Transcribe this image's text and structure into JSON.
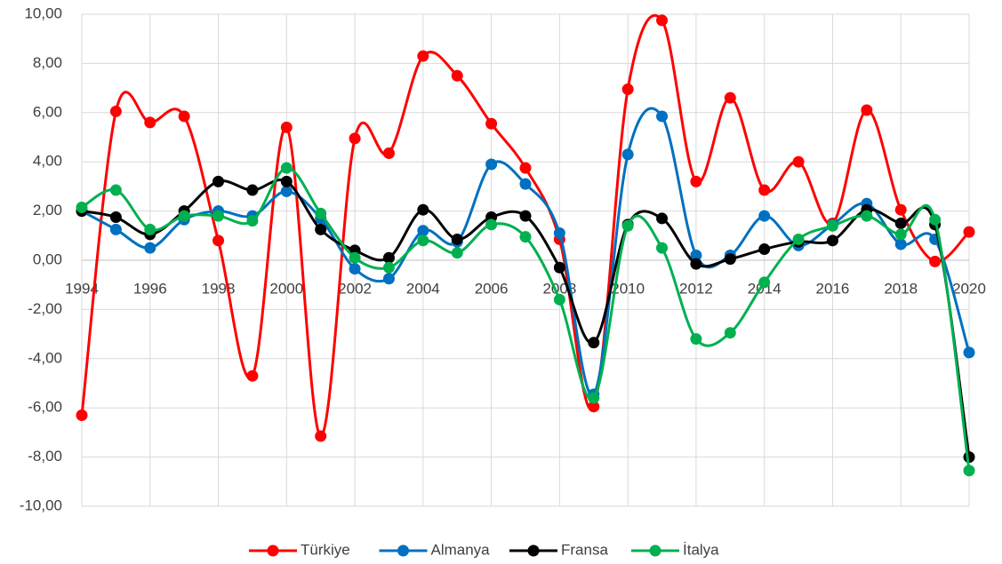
{
  "chart_data": {
    "type": "line",
    "smooth": true,
    "x": [
      1994,
      1995,
      1996,
      1997,
      1998,
      1999,
      2000,
      2001,
      2002,
      2003,
      2004,
      2005,
      2006,
      2007,
      2008,
      2009,
      2010,
      2011,
      2012,
      2013,
      2014,
      2015,
      2016,
      2017,
      2018,
      2019,
      2020
    ],
    "series": [
      {
        "name": "Türkiye",
        "color": "#ff0000",
        "values": [
          -6.3,
          6.05,
          5.6,
          5.85,
          0.8,
          -4.7,
          5.4,
          -7.15,
          4.95,
          4.35,
          8.3,
          7.5,
          5.55,
          3.75,
          0.85,
          -5.95,
          6.95,
          9.75,
          3.2,
          6.6,
          2.85,
          4.0,
          1.5,
          6.1,
          2.05,
          -0.05,
          1.15
        ]
      },
      {
        "name": "Almanya",
        "color": "#0070c0",
        "values": [
          2.0,
          1.25,
          0.5,
          1.65,
          2.0,
          1.8,
          2.8,
          1.7,
          -0.35,
          -0.75,
          1.2,
          0.75,
          3.9,
          3.1,
          1.1,
          -5.45,
          4.3,
          5.85,
          0.2,
          0.2,
          1.8,
          0.6,
          1.45,
          2.3,
          0.65,
          0.85,
          -3.75
        ]
      },
      {
        "name": "Fransa",
        "color": "#000000",
        "values": [
          2.0,
          1.75,
          1.05,
          2.0,
          3.2,
          2.85,
          3.2,
          1.25,
          0.4,
          0.1,
          2.05,
          0.85,
          1.75,
          1.8,
          -0.3,
          -3.35,
          1.45,
          1.7,
          -0.15,
          0.05,
          0.45,
          0.75,
          0.8,
          2.05,
          1.5,
          1.45,
          -8.0
        ]
      },
      {
        "name": "İtalya",
        "color": "#00b050",
        "values": [
          2.15,
          2.85,
          1.25,
          1.8,
          1.8,
          1.6,
          3.75,
          1.9,
          0.1,
          -0.3,
          0.8,
          0.3,
          1.45,
          0.95,
          -1.6,
          -5.6,
          1.4,
          0.5,
          -3.2,
          -2.95,
          -0.9,
          0.85,
          1.4,
          1.8,
          1.05,
          1.65,
          -8.55
        ]
      }
    ],
    "xlim": [
      1994,
      2020
    ],
    "xticks": [
      1994,
      1996,
      1998,
      2000,
      2002,
      2004,
      2006,
      2008,
      2010,
      2012,
      2014,
      2016,
      2018,
      2020
    ],
    "ylim": [
      -10,
      10
    ],
    "yticks": [
      {
        "value": -10,
        "label": "-10,00"
      },
      {
        "value": -8,
        "label": "-8,00"
      },
      {
        "value": -6,
        "label": "-6,00"
      },
      {
        "value": -4,
        "label": "-4,00"
      },
      {
        "value": -2,
        "label": "-2,00"
      },
      {
        "value": 0,
        "label": "0,00"
      },
      {
        "value": 2,
        "label": "2,00"
      },
      {
        "value": 4,
        "label": "4,00"
      },
      {
        "value": 6,
        "label": "6,00"
      },
      {
        "value": 8,
        "label": "8,00"
      },
      {
        "value": 10,
        "label": "10,00"
      }
    ],
    "grid": true,
    "legend": "bottom"
  }
}
